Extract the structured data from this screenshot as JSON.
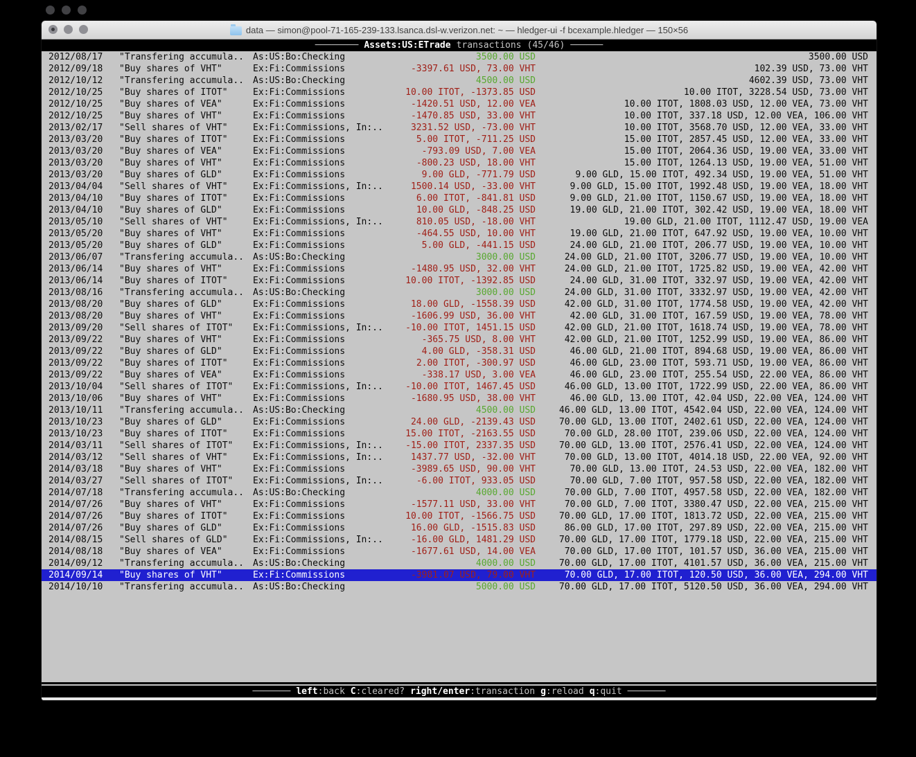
{
  "colors": {
    "positive": "#58a830",
    "negative": "#a02018",
    "selection_bg": "#2020d0",
    "terminal_bg": "#c6c6c6"
  },
  "window": {
    "title": "data — simon@pool-71-165-239-133.lsanca.dsl-w.verizon.net: ~ — hledger-ui -f bcexample.hledger — 150×56",
    "folder_icon": "folder-icon"
  },
  "header": {
    "dashes_left": "────────",
    "account": "Assets:US:ETrade",
    "mode": "transactions",
    "position": "(45/46)",
    "dashes_right": "──────"
  },
  "transactions": {
    "rows": [
      {
        "date": "2012/08/17",
        "description": "\"Transfering accumula..",
        "account": "As:US:Bo:Checking",
        "amount": "3500.00 USD",
        "amount_negative": false,
        "balance": "3500.00 USD",
        "selected": false
      },
      {
        "date": "2012/09/18",
        "description": "\"Buy shares of VHT\"",
        "account": "Ex:Fi:Commissions",
        "amount": "-3397.61 USD, 73.00 VHT",
        "amount_negative": true,
        "balance": "102.39 USD, 73.00 VHT",
        "selected": false
      },
      {
        "date": "2012/10/12",
        "description": "\"Transfering accumula..",
        "account": "As:US:Bo:Checking",
        "amount": "4500.00 USD",
        "amount_negative": false,
        "balance": "4602.39 USD, 73.00 VHT",
        "selected": false
      },
      {
        "date": "2012/10/25",
        "description": "\"Buy shares of ITOT\"",
        "account": "Ex:Fi:Commissions",
        "amount": "10.00 ITOT, -1373.85 USD",
        "amount_negative": true,
        "balance": "10.00 ITOT, 3228.54 USD, 73.00 VHT",
        "selected": false
      },
      {
        "date": "2012/10/25",
        "description": "\"Buy shares of VEA\"",
        "account": "Ex:Fi:Commissions",
        "amount": "-1420.51 USD, 12.00 VEA",
        "amount_negative": true,
        "balance": "10.00 ITOT, 1808.03 USD, 12.00 VEA, 73.00 VHT",
        "selected": false
      },
      {
        "date": "2012/10/25",
        "description": "\"Buy shares of VHT\"",
        "account": "Ex:Fi:Commissions",
        "amount": "-1470.85 USD, 33.00 VHT",
        "amount_negative": true,
        "balance": "10.00 ITOT, 337.18 USD, 12.00 VEA, 106.00 VHT",
        "selected": false
      },
      {
        "date": "2013/02/17",
        "description": "\"Sell shares of VHT\"",
        "account": "Ex:Fi:Commissions, In:..",
        "amount": "3231.52 USD, -73.00 VHT",
        "amount_negative": true,
        "balance": "10.00 ITOT, 3568.70 USD, 12.00 VEA, 33.00 VHT",
        "selected": false
      },
      {
        "date": "2013/03/20",
        "description": "\"Buy shares of ITOT\"",
        "account": "Ex:Fi:Commissions",
        "amount": "5.00 ITOT, -711.25 USD",
        "amount_negative": true,
        "balance": "15.00 ITOT, 2857.45 USD, 12.00 VEA, 33.00 VHT",
        "selected": false
      },
      {
        "date": "2013/03/20",
        "description": "\"Buy shares of VEA\"",
        "account": "Ex:Fi:Commissions",
        "amount": "-793.09 USD, 7.00 VEA",
        "amount_negative": true,
        "balance": "15.00 ITOT, 2064.36 USD, 19.00 VEA, 33.00 VHT",
        "selected": false
      },
      {
        "date": "2013/03/20",
        "description": "\"Buy shares of VHT\"",
        "account": "Ex:Fi:Commissions",
        "amount": "-800.23 USD, 18.00 VHT",
        "amount_negative": true,
        "balance": "15.00 ITOT, 1264.13 USD, 19.00 VEA, 51.00 VHT",
        "selected": false
      },
      {
        "date": "2013/03/20",
        "description": "\"Buy shares of GLD\"",
        "account": "Ex:Fi:Commissions",
        "amount": "9.00 GLD, -771.79 USD",
        "amount_negative": true,
        "balance": "9.00 GLD, 15.00 ITOT, 492.34 USD, 19.00 VEA, 51.00 VHT",
        "selected": false
      },
      {
        "date": "2013/04/04",
        "description": "\"Sell shares of VHT\"",
        "account": "Ex:Fi:Commissions, In:..",
        "amount": "1500.14 USD, -33.00 VHT",
        "amount_negative": true,
        "balance": "9.00 GLD, 15.00 ITOT, 1992.48 USD, 19.00 VEA, 18.00 VHT",
        "selected": false
      },
      {
        "date": "2013/04/10",
        "description": "\"Buy shares of ITOT\"",
        "account": "Ex:Fi:Commissions",
        "amount": "6.00 ITOT, -841.81 USD",
        "amount_negative": true,
        "balance": "9.00 GLD, 21.00 ITOT, 1150.67 USD, 19.00 VEA, 18.00 VHT",
        "selected": false
      },
      {
        "date": "2013/04/10",
        "description": "\"Buy shares of GLD\"",
        "account": "Ex:Fi:Commissions",
        "amount": "10.00 GLD, -848.25 USD",
        "amount_negative": true,
        "balance": "19.00 GLD, 21.00 ITOT, 302.42 USD, 19.00 VEA, 18.00 VHT",
        "selected": false
      },
      {
        "date": "2013/05/10",
        "description": "\"Sell shares of VHT\"",
        "account": "Ex:Fi:Commissions, In:..",
        "amount": "810.05 USD, -18.00 VHT",
        "amount_negative": true,
        "balance": "19.00 GLD, 21.00 ITOT, 1112.47 USD, 19.00 VEA",
        "selected": false
      },
      {
        "date": "2013/05/20",
        "description": "\"Buy shares of VHT\"",
        "account": "Ex:Fi:Commissions",
        "amount": "-464.55 USD, 10.00 VHT",
        "amount_negative": true,
        "balance": "19.00 GLD, 21.00 ITOT, 647.92 USD, 19.00 VEA, 10.00 VHT",
        "selected": false
      },
      {
        "date": "2013/05/20",
        "description": "\"Buy shares of GLD\"",
        "account": "Ex:Fi:Commissions",
        "amount": "5.00 GLD, -441.15 USD",
        "amount_negative": true,
        "balance": "24.00 GLD, 21.00 ITOT, 206.77 USD, 19.00 VEA, 10.00 VHT",
        "selected": false
      },
      {
        "date": "2013/06/07",
        "description": "\"Transfering accumula..",
        "account": "As:US:Bo:Checking",
        "amount": "3000.00 USD",
        "amount_negative": false,
        "balance": "24.00 GLD, 21.00 ITOT, 3206.77 USD, 19.00 VEA, 10.00 VHT",
        "selected": false
      },
      {
        "date": "2013/06/14",
        "description": "\"Buy shares of VHT\"",
        "account": "Ex:Fi:Commissions",
        "amount": "-1480.95 USD, 32.00 VHT",
        "amount_negative": true,
        "balance": "24.00 GLD, 21.00 ITOT, 1725.82 USD, 19.00 VEA, 42.00 VHT",
        "selected": false
      },
      {
        "date": "2013/06/14",
        "description": "\"Buy shares of ITOT\"",
        "account": "Ex:Fi:Commissions",
        "amount": "10.00 ITOT, -1392.85 USD",
        "amount_negative": true,
        "balance": "24.00 GLD, 31.00 ITOT, 332.97 USD, 19.00 VEA, 42.00 VHT",
        "selected": false
      },
      {
        "date": "2013/08/16",
        "description": "\"Transfering accumula..",
        "account": "As:US:Bo:Checking",
        "amount": "3000.00 USD",
        "amount_negative": false,
        "balance": "24.00 GLD, 31.00 ITOT, 3332.97 USD, 19.00 VEA, 42.00 VHT",
        "selected": false
      },
      {
        "date": "2013/08/20",
        "description": "\"Buy shares of GLD\"",
        "account": "Ex:Fi:Commissions",
        "amount": "18.00 GLD, -1558.39 USD",
        "amount_negative": true,
        "balance": "42.00 GLD, 31.00 ITOT, 1774.58 USD, 19.00 VEA, 42.00 VHT",
        "selected": false
      },
      {
        "date": "2013/08/20",
        "description": "\"Buy shares of VHT\"",
        "account": "Ex:Fi:Commissions",
        "amount": "-1606.99 USD, 36.00 VHT",
        "amount_negative": true,
        "balance": "42.00 GLD, 31.00 ITOT, 167.59 USD, 19.00 VEA, 78.00 VHT",
        "selected": false
      },
      {
        "date": "2013/09/20",
        "description": "\"Sell shares of ITOT\"",
        "account": "Ex:Fi:Commissions, In:..",
        "amount": "-10.00 ITOT, 1451.15 USD",
        "amount_negative": true,
        "balance": "42.00 GLD, 21.00 ITOT, 1618.74 USD, 19.00 VEA, 78.00 VHT",
        "selected": false
      },
      {
        "date": "2013/09/22",
        "description": "\"Buy shares of VHT\"",
        "account": "Ex:Fi:Commissions",
        "amount": "-365.75 USD, 8.00 VHT",
        "amount_negative": true,
        "balance": "42.00 GLD, 21.00 ITOT, 1252.99 USD, 19.00 VEA, 86.00 VHT",
        "selected": false
      },
      {
        "date": "2013/09/22",
        "description": "\"Buy shares of GLD\"",
        "account": "Ex:Fi:Commissions",
        "amount": "4.00 GLD, -358.31 USD",
        "amount_negative": true,
        "balance": "46.00 GLD, 21.00 ITOT, 894.68 USD, 19.00 VEA, 86.00 VHT",
        "selected": false
      },
      {
        "date": "2013/09/22",
        "description": "\"Buy shares of ITOT\"",
        "account": "Ex:Fi:Commissions",
        "amount": "2.00 ITOT, -300.97 USD",
        "amount_negative": true,
        "balance": "46.00 GLD, 23.00 ITOT, 593.71 USD, 19.00 VEA, 86.00 VHT",
        "selected": false
      },
      {
        "date": "2013/09/22",
        "description": "\"Buy shares of VEA\"",
        "account": "Ex:Fi:Commissions",
        "amount": "-338.17 USD, 3.00 VEA",
        "amount_negative": true,
        "balance": "46.00 GLD, 23.00 ITOT, 255.54 USD, 22.00 VEA, 86.00 VHT",
        "selected": false
      },
      {
        "date": "2013/10/04",
        "description": "\"Sell shares of ITOT\"",
        "account": "Ex:Fi:Commissions, In:..",
        "amount": "-10.00 ITOT, 1467.45 USD",
        "amount_negative": true,
        "balance": "46.00 GLD, 13.00 ITOT, 1722.99 USD, 22.00 VEA, 86.00 VHT",
        "selected": false
      },
      {
        "date": "2013/10/06",
        "description": "\"Buy shares of VHT\"",
        "account": "Ex:Fi:Commissions",
        "amount": "-1680.95 USD, 38.00 VHT",
        "amount_negative": true,
        "balance": "46.00 GLD, 13.00 ITOT, 42.04 USD, 22.00 VEA, 124.00 VHT",
        "selected": false
      },
      {
        "date": "2013/10/11",
        "description": "\"Transfering accumula..",
        "account": "As:US:Bo:Checking",
        "amount": "4500.00 USD",
        "amount_negative": false,
        "balance": "46.00 GLD, 13.00 ITOT, 4542.04 USD, 22.00 VEA, 124.00 VHT",
        "selected": false
      },
      {
        "date": "2013/10/23",
        "description": "\"Buy shares of GLD\"",
        "account": "Ex:Fi:Commissions",
        "amount": "24.00 GLD, -2139.43 USD",
        "amount_negative": true,
        "balance": "70.00 GLD, 13.00 ITOT, 2402.61 USD, 22.00 VEA, 124.00 VHT",
        "selected": false
      },
      {
        "date": "2013/10/23",
        "description": "\"Buy shares of ITOT\"",
        "account": "Ex:Fi:Commissions",
        "amount": "15.00 ITOT, -2163.55 USD",
        "amount_negative": true,
        "balance": "70.00 GLD, 28.00 ITOT, 239.06 USD, 22.00 VEA, 124.00 VHT",
        "selected": false
      },
      {
        "date": "2014/03/11",
        "description": "\"Sell shares of ITOT\"",
        "account": "Ex:Fi:Commissions, In:..",
        "amount": "-15.00 ITOT, 2337.35 USD",
        "amount_negative": true,
        "balance": "70.00 GLD, 13.00 ITOT, 2576.41 USD, 22.00 VEA, 124.00 VHT",
        "selected": false
      },
      {
        "date": "2014/03/12",
        "description": "\"Sell shares of VHT\"",
        "account": "Ex:Fi:Commissions, In:..",
        "amount": "1437.77 USD, -32.00 VHT",
        "amount_negative": true,
        "balance": "70.00 GLD, 13.00 ITOT, 4014.18 USD, 22.00 VEA, 92.00 VHT",
        "selected": false
      },
      {
        "date": "2014/03/18",
        "description": "\"Buy shares of VHT\"",
        "account": "Ex:Fi:Commissions",
        "amount": "-3989.65 USD, 90.00 VHT",
        "amount_negative": true,
        "balance": "70.00 GLD, 13.00 ITOT, 24.53 USD, 22.00 VEA, 182.00 VHT",
        "selected": false
      },
      {
        "date": "2014/03/27",
        "description": "\"Sell shares of ITOT\"",
        "account": "Ex:Fi:Commissions, In:..",
        "amount": "-6.00 ITOT, 933.05 USD",
        "amount_negative": true,
        "balance": "70.00 GLD, 7.00 ITOT, 957.58 USD, 22.00 VEA, 182.00 VHT",
        "selected": false
      },
      {
        "date": "2014/07/18",
        "description": "\"Transfering accumula..",
        "account": "As:US:Bo:Checking",
        "amount": "4000.00 USD",
        "amount_negative": false,
        "balance": "70.00 GLD, 7.00 ITOT, 4957.58 USD, 22.00 VEA, 182.00 VHT",
        "selected": false
      },
      {
        "date": "2014/07/26",
        "description": "\"Buy shares of VHT\"",
        "account": "Ex:Fi:Commissions",
        "amount": "-1577.11 USD, 33.00 VHT",
        "amount_negative": true,
        "balance": "70.00 GLD, 7.00 ITOT, 3380.47 USD, 22.00 VEA, 215.00 VHT",
        "selected": false
      },
      {
        "date": "2014/07/26",
        "description": "\"Buy shares of ITOT\"",
        "account": "Ex:Fi:Commissions",
        "amount": "10.00 ITOT, -1566.75 USD",
        "amount_negative": true,
        "balance": "70.00 GLD, 17.00 ITOT, 1813.72 USD, 22.00 VEA, 215.00 VHT",
        "selected": false
      },
      {
        "date": "2014/07/26",
        "description": "\"Buy shares of GLD\"",
        "account": "Ex:Fi:Commissions",
        "amount": "16.00 GLD, -1515.83 USD",
        "amount_negative": true,
        "balance": "86.00 GLD, 17.00 ITOT, 297.89 USD, 22.00 VEA, 215.00 VHT",
        "selected": false
      },
      {
        "date": "2014/08/15",
        "description": "\"Sell shares of GLD\"",
        "account": "Ex:Fi:Commissions, In:..",
        "amount": "-16.00 GLD, 1481.29 USD",
        "amount_negative": true,
        "balance": "70.00 GLD, 17.00 ITOT, 1779.18 USD, 22.00 VEA, 215.00 VHT",
        "selected": false
      },
      {
        "date": "2014/08/18",
        "description": "\"Buy shares of VEA\"",
        "account": "Ex:Fi:Commissions",
        "amount": "-1677.61 USD, 14.00 VEA",
        "amount_negative": true,
        "balance": "70.00 GLD, 17.00 ITOT, 101.57 USD, 36.00 VEA, 215.00 VHT",
        "selected": false
      },
      {
        "date": "2014/09/12",
        "description": "\"Transfering accumula..",
        "account": "As:US:Bo:Checking",
        "amount": "4000.00 USD",
        "amount_negative": false,
        "balance": "70.00 GLD, 17.00 ITOT, 4101.57 USD, 36.00 VEA, 215.00 VHT",
        "selected": false
      },
      {
        "date": "2014/09/14",
        "description": "\"Buy shares of VHT\"",
        "account": "Ex:Fi:Commissions",
        "amount": "-3981.07 USD, 79.00 VHT",
        "amount_negative": true,
        "balance": "70.00 GLD, 17.00 ITOT, 120.50 USD, 36.00 VEA, 294.00 VHT",
        "selected": true
      },
      {
        "date": "2014/10/10",
        "description": "\"Transfering accumula..",
        "account": "As:US:Bo:Checking",
        "amount": "5000.00 USD",
        "amount_negative": false,
        "balance": "70.00 GLD, 17.00 ITOT, 5120.50 USD, 36.00 VEA, 294.00 VHT",
        "selected": false
      }
    ]
  },
  "help": {
    "dashes_left": "───────",
    "dashes_right": "───────",
    "items": [
      {
        "key": "left",
        "label": ":back"
      },
      {
        "key": "C",
        "label": ":cleared?"
      },
      {
        "key": "right/enter",
        "label": ":transaction"
      },
      {
        "key": "g",
        "label": ":reload"
      },
      {
        "key": "q",
        "label": ":quit"
      }
    ]
  }
}
